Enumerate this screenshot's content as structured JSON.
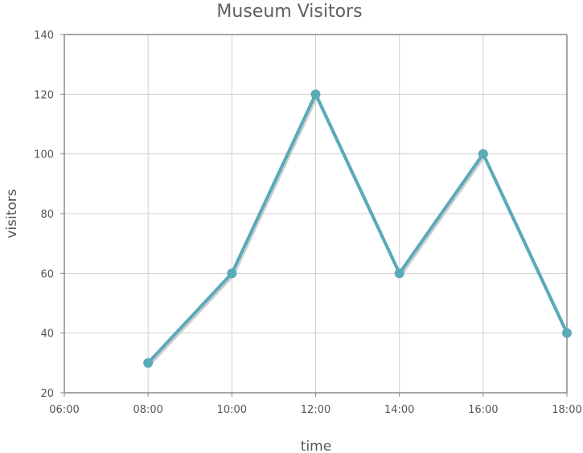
{
  "chart_data": {
    "type": "line",
    "title": "Museum Visitors",
    "xlabel": "time",
    "ylabel": "visitors",
    "x": [
      "08:00",
      "10:00",
      "12:00",
      "14:00",
      "16:00",
      "18:00"
    ],
    "x_ticks": [
      "06:00",
      "08:00",
      "10:00",
      "12:00",
      "14:00",
      "16:00",
      "18:00"
    ],
    "y_ticks": [
      20,
      40,
      60,
      80,
      100,
      120,
      140
    ],
    "ylim": [
      20,
      140
    ],
    "xlim": [
      "06:00",
      "18:00"
    ],
    "grid": true,
    "series": [
      {
        "values": [
          30,
          60,
          120,
          60,
          100,
          40
        ],
        "color": "#5aaab8"
      }
    ]
  }
}
